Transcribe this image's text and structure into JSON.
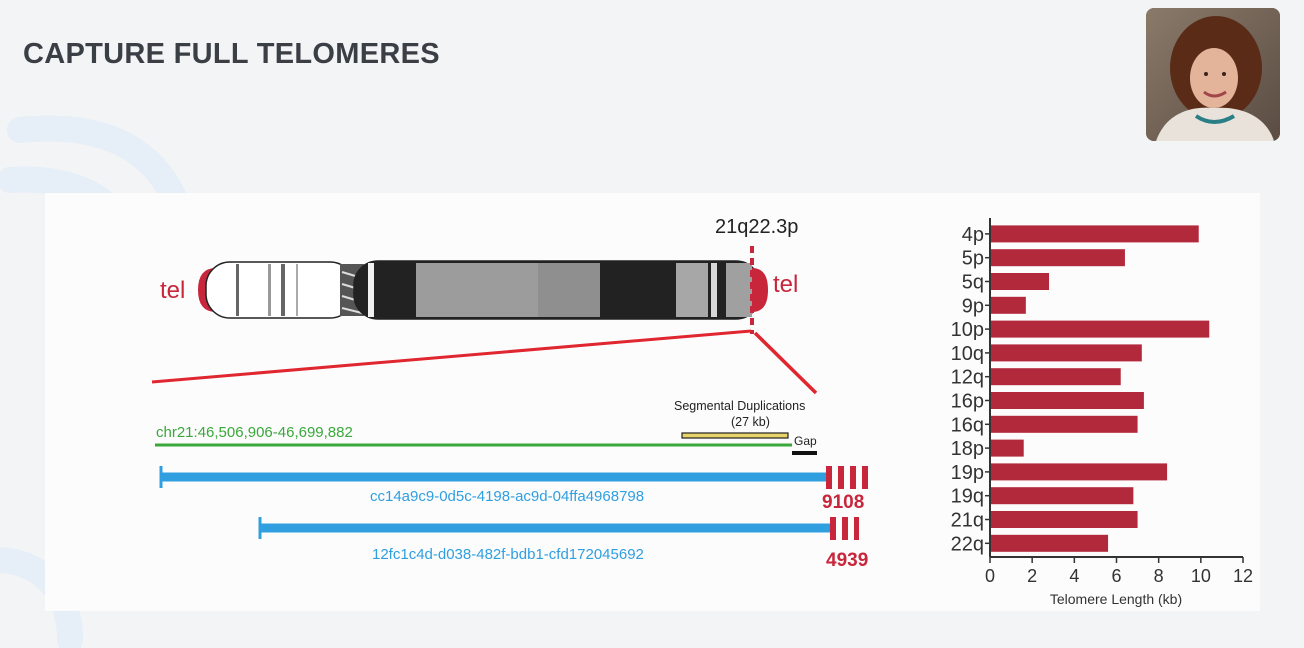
{
  "slide": {
    "title": "CAPTURE FULL TELOMERES"
  },
  "speaker_video": {
    "icon": "speaker-webcam-photo"
  },
  "figure": {
    "chromosome": {
      "left_tel_label": "tel",
      "right_tel_label": "tel",
      "locus_label": "21q22.3p"
    },
    "reference": {
      "coordinates": "chr21:46,506,906-46,699,882",
      "segdup_label_line1": "Segmental Duplications",
      "segdup_label_line2": "(27 kb)",
      "gap_label": "Gap"
    },
    "reads": [
      {
        "id": "cc14a9c9-0d5c-4198-ac9d-04ffa4968798",
        "telomere_length": "9108"
      },
      {
        "id": "12fc1c4d-d038-482f-bdb1-cfd172045692",
        "telomere_length": "4939"
      }
    ],
    "colors": {
      "telomere_red": "#c8263a",
      "read_blue": "#2f9fe0",
      "reference_green": "#3aa83a",
      "bar_red": "#b3293c"
    }
  },
  "chart_data": {
    "type": "bar",
    "orientation": "horizontal",
    "categories": [
      "4p",
      "5p",
      "5q",
      "9p",
      "10p",
      "10q",
      "12q",
      "16p",
      "16q",
      "18p",
      "19p",
      "19q",
      "21q",
      "22q"
    ],
    "values": [
      9.9,
      6.4,
      2.8,
      1.7,
      10.4,
      7.2,
      6.2,
      7.3,
      7.0,
      1.6,
      8.4,
      6.8,
      7.0,
      5.6
    ],
    "xlabel": "Telomere Length (kb)",
    "ylabel": "",
    "xlim": [
      0,
      12
    ],
    "xticks": [
      "0",
      "2",
      "4",
      "6",
      "8",
      "10",
      "12"
    ],
    "grid": false
  }
}
